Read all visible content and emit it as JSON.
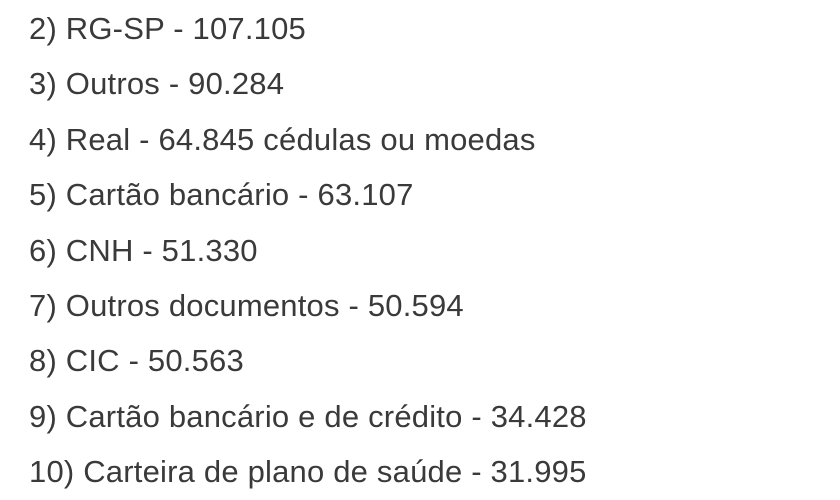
{
  "page": {
    "background": "#ffffff",
    "text_color": "#3a3a3a"
  },
  "list": {
    "items": [
      {
        "rank": "2",
        "label": "RG-SP",
        "value": "107.105",
        "note": "",
        "text": "2) RG-SP - 107.105"
      },
      {
        "rank": "3",
        "label": "Outros",
        "value": "90.284",
        "note": "",
        "text": "3) Outros - 90.284"
      },
      {
        "rank": "4",
        "label": "Real",
        "value": "64.845",
        "note": "cédulas ou moedas",
        "text": "4) Real - 64.845 cédulas ou moedas"
      },
      {
        "rank": "5",
        "label": "Cartão bancário",
        "value": "63.107",
        "note": "",
        "text": "5) Cartão bancário - 63.107"
      },
      {
        "rank": "6",
        "label": "CNH",
        "value": "51.330",
        "note": "",
        "text": "6) CNH - 51.330"
      },
      {
        "rank": "7",
        "label": "Outros documentos",
        "value": "50.594",
        "note": "",
        "text": "7) Outros documentos - 50.594"
      },
      {
        "rank": "8",
        "label": "CIC",
        "value": "50.563",
        "note": "",
        "text": "8) CIC - 50.563"
      },
      {
        "rank": "9",
        "label": "Cartão bancário e de crédito",
        "value": "34.428",
        "note": "",
        "text": "9) Cartão bancário e de crédito - 34.428"
      },
      {
        "rank": "10",
        "label": "Carteira de plano de saúde",
        "value": "31.995",
        "note": "",
        "text": "10) Carteira de plano de saúde - 31.995"
      }
    ]
  }
}
